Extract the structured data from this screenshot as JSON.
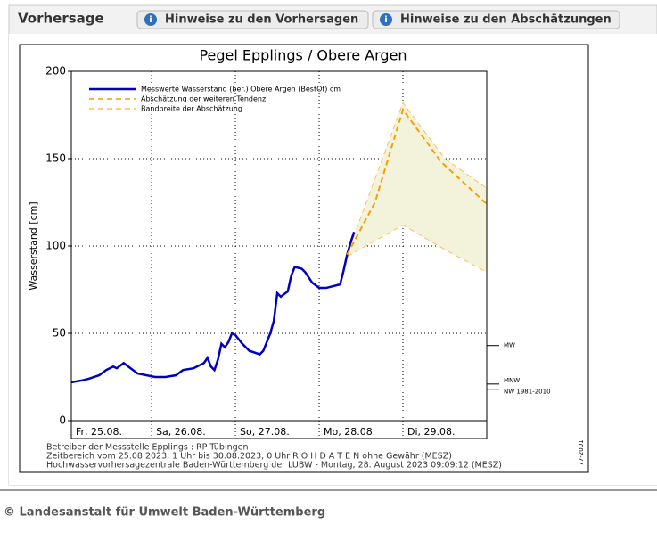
{
  "header": {
    "title": "Vorhersage",
    "buttons": [
      "Hinweise zu den Vorhersagen",
      "Hinweise zu den Abschätzungen"
    ]
  },
  "chart_data": {
    "type": "line",
    "title": "Pegel Epplings / Obere Argen",
    "y_label": "Wasserstand [cm]",
    "xlim": [
      1,
      120
    ],
    "xticks": [
      {
        "value": 1,
        "label": "Fr, 25.08."
      },
      {
        "value": 24,
        "label": "Sa, 26.08."
      },
      {
        "value": 48,
        "label": "So, 27.08."
      },
      {
        "value": 72,
        "label": "Mo, 28.08."
      },
      {
        "value": 96,
        "label": "Di, 29.08."
      }
    ],
    "ylim": [
      0,
      200
    ],
    "yticks": [
      0,
      50,
      100,
      150,
      200
    ],
    "grid": true,
    "series": [
      {
        "name": "Messwerte Wasserstand (ber.) Obere Argen  (BestOf)  cm",
        "color": "#0000c0",
        "dashed": false,
        "x": [
          1,
          4,
          6,
          9,
          11,
          13,
          14,
          16,
          18,
          20,
          25,
          28,
          31,
          33,
          36,
          39,
          40,
          41,
          42,
          43,
          44,
          45,
          46,
          47,
          48,
          50,
          52,
          55,
          56,
          58,
          59,
          60,
          61,
          63,
          64,
          65,
          67,
          68,
          70,
          72,
          74,
          76,
          78,
          79,
          80,
          81,
          82
        ],
        "values": [
          22,
          23,
          24,
          26,
          29,
          31,
          30,
          33,
          30,
          27,
          25,
          25,
          26,
          29,
          30,
          33,
          36,
          31,
          29,
          35,
          44,
          42,
          45,
          50,
          49,
          44,
          40,
          38,
          40,
          50,
          57,
          73,
          71,
          74,
          83,
          88,
          87,
          85,
          79,
          76,
          76,
          77,
          78,
          86,
          95,
          102,
          108
        ]
      },
      {
        "name": "Abschätzung der weiteren Tendenz",
        "color": "#f5a000",
        "dashed": true,
        "x": [
          80,
          88,
          96,
          107,
          120
        ],
        "values": [
          95,
          125,
          178,
          148,
          124
        ]
      },
      {
        "name": "Bandbreite der Abschätzung",
        "color": "#f7c060",
        "fill": "#f3f3dc",
        "dashed": true,
        "x": [
          80,
          96,
          108,
          120
        ],
        "high": [
          95,
          182,
          150,
          133
        ],
        "low": [
          94,
          112,
          98,
          85
        ]
      }
    ],
    "reference_marks": [
      {
        "label": "MW",
        "value": 43
      },
      {
        "label": "MNW",
        "value": 21
      },
      {
        "label": "NW 1981-2010",
        "value": 18
      }
    ],
    "notes": [
      "Betreiber der Messstelle Epplings : RP Tübingen",
      "Zeitbereich vom 25.08.2023, 1 Uhr bis 30.08.2023, 0 Uhr   R O H D A T E N ohne Gewähr (MESZ)",
      "Hochwasservorhersagezentrale Baden-Württemberg der LUBW - Montag, 28. August 2023 09:09:12 (MESZ)"
    ],
    "code": "77-2001"
  },
  "footer": {
    "copyright": "© Landesanstalt für Umwelt Baden-Württemberg"
  }
}
